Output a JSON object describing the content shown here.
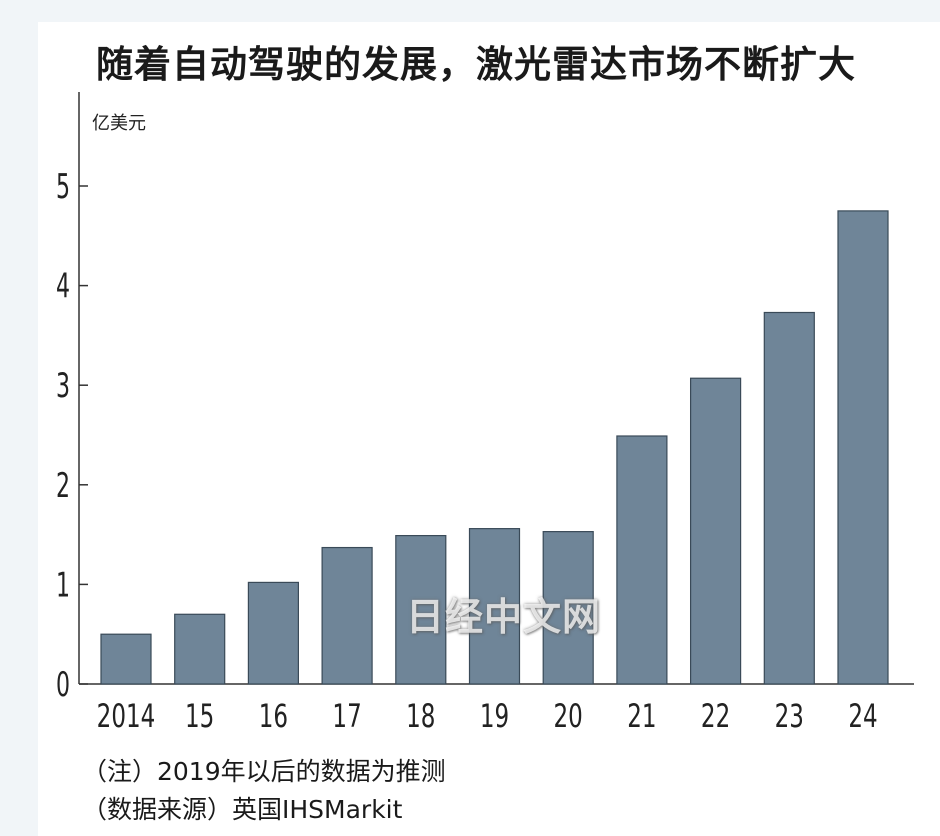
{
  "chart_data": {
    "type": "bar",
    "title": "随着自动驾驶的发展，激光雷达市场不断扩大",
    "ylabel": "亿美元",
    "xlabel": "",
    "categories": [
      "2014",
      "15",
      "16",
      "17",
      "18",
      "19",
      "20",
      "21",
      "22",
      "23",
      "24"
    ],
    "values": [
      0.5,
      0.7,
      1.02,
      1.37,
      1.49,
      1.56,
      1.53,
      2.49,
      3.07,
      3.73,
      4.75
    ],
    "ylim": [
      0,
      5.8
    ],
    "yticks": [
      "0",
      "1",
      "2",
      "3",
      "4",
      "5"
    ],
    "grid": false,
    "bar_color": "#6f8598"
  },
  "notes": {
    "note1": "（注）2019年以后的数据为推测",
    "note2": "（数据来源）英国IHSMarkit"
  },
  "watermark": "日经中文网"
}
